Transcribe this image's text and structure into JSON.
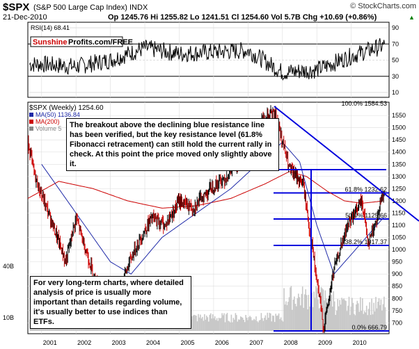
{
  "header": {
    "symbol": "$SPX",
    "name": "(S&P 500 Large Cap Index) INDX",
    "date": "21-Dec-2010",
    "quote": "Op 1245.76  Hi 1255.82  Lo 1241.51  Cl 1254.60  Vol 5.7B  Chg +10.69 (+0.86%)",
    "quote_arrow": "▲",
    "watermark": "© StockCharts.com"
  },
  "rsi": {
    "label": "RSI(14) 68.41",
    "ticks": [
      "90",
      "70",
      "50",
      "30",
      "10"
    ],
    "brand_part1": "Sunshine",
    "brand_part2": "Profits.com/FREE"
  },
  "price": {
    "label": "$SPX (Weekly) 1254.60",
    "legend": [
      {
        "text": "MA(50) 1136.84",
        "color": "#1f2aa8"
      },
      {
        "text": "MA(200)",
        "color": "#cc0000"
      },
      {
        "text": "Volume 5",
        "color": "#888888"
      }
    ],
    "yticks": [
      "1550",
      "1500",
      "1450",
      "1400",
      "1350",
      "1300",
      "1250",
      "1200",
      "1150",
      "1100",
      "1050",
      "1000",
      "950",
      "900",
      "850",
      "800",
      "750",
      "700"
    ],
    "vol_ticks": [
      "40B",
      "10B"
    ],
    "fib_labels": [
      {
        "text": "100.0% 1584.53",
        "value": 1584.53
      },
      {
        "text": "61.8% 1232.62",
        "value": 1232.62
      },
      {
        "text": "50.0% 1125.66",
        "value": 1125.66
      },
      {
        "text": "38.2% 1017.37",
        "value": 1017.37
      },
      {
        "text": "0.0% 666.79",
        "value": 666.79
      }
    ]
  },
  "xaxis": [
    "2001",
    "2002",
    "2003",
    "2004",
    "2005",
    "2006",
    "2007",
    "2008",
    "2009",
    "2010"
  ],
  "notes": {
    "breakout": "The breakout above the declining blue resistance line has been verified, but the key resistance level (61.8% Fibonacci retracement) can still hold the current rally in check. At this point the price moved only slightly above it.",
    "etf": "For very long-term charts, where detailed analysis of price is usually more important than details regarding volume, it's usually better to use indices than ETFs."
  },
  "colors": {
    "price": "#000000",
    "up_bar": "#000000",
    "down_bar": "#cc0000",
    "ma50": "#1f2aa8",
    "ma200": "#cc0000",
    "resistance": "#0000dd",
    "volume": "#cccccc"
  },
  "chart_data": [
    {
      "type": "line",
      "title": "RSI(14)",
      "ylim": [
        10,
        90
      ],
      "series": [
        {
          "name": "RSI(14)",
          "x": [
            2001,
            2002,
            2003,
            2004,
            2005,
            2006,
            2007,
            2008,
            2009,
            2010,
            2010.97
          ],
          "values": [
            45,
            42,
            50,
            65,
            58,
            60,
            62,
            35,
            38,
            55,
            68.41
          ]
        }
      ]
    },
    {
      "type": "line",
      "title": "$SPX (Weekly)",
      "ylim": [
        666.79,
        1584.53
      ],
      "series": [
        {
          "name": "$SPX",
          "x": [
            2000.6,
            2000.8,
            2001.2,
            2001.7,
            2002.0,
            2002.5,
            2002.8,
            2003.2,
            2003.7,
            2004.2,
            2004.6,
            2005.0,
            2005.4,
            2005.9,
            2006.4,
            2007.0,
            2007.4,
            2007.8,
            2008.2,
            2008.6,
            2009.0,
            2009.2,
            2009.5,
            2009.9,
            2010.3,
            2010.5,
            2010.75,
            2010.97
          ],
          "values": [
            1450,
            1300,
            1150,
            950,
            1130,
            900,
            800,
            820,
            1000,
            1130,
            1100,
            1200,
            1170,
            1250,
            1300,
            1410,
            1530,
            1560,
            1330,
            1270,
            870,
            680,
            920,
            1100,
            1200,
            1030,
            1130,
            1254.6
          ]
        },
        {
          "name": "MA(50)",
          "x": [
            2001.0,
            2002.0,
            2003.0,
            2003.6,
            2004.5,
            2005.5,
            2006.5,
            2007.5,
            2008.0,
            2008.5,
            2009.0,
            2009.5,
            2010.0,
            2010.97
          ],
          "values": [
            1350,
            1150,
            950,
            900,
            1050,
            1150,
            1250,
            1380,
            1440,
            1360,
            1100,
            900,
            980,
            1136.84
          ]
        },
        {
          "name": "MA(200)",
          "x": [
            2000.6,
            2001.5,
            2002.5,
            2003.5,
            2004.5,
            2005.5,
            2006.5,
            2007.5,
            2008.2,
            2008.7,
            2009.3,
            2009.8,
            2010.3,
            2010.97
          ],
          "values": [
            1210,
            1280,
            1250,
            1200,
            1170,
            1180,
            1210,
            1270,
            1320,
            1300,
            1240,
            1200,
            1190,
            1200
          ]
        }
      ],
      "annotations": [
        "resistance line 2007.8→2011",
        "fibonacci levels 1584.53 / 1232.62 / 1125.66 / 1017.37 / 666.79"
      ]
    }
  ]
}
